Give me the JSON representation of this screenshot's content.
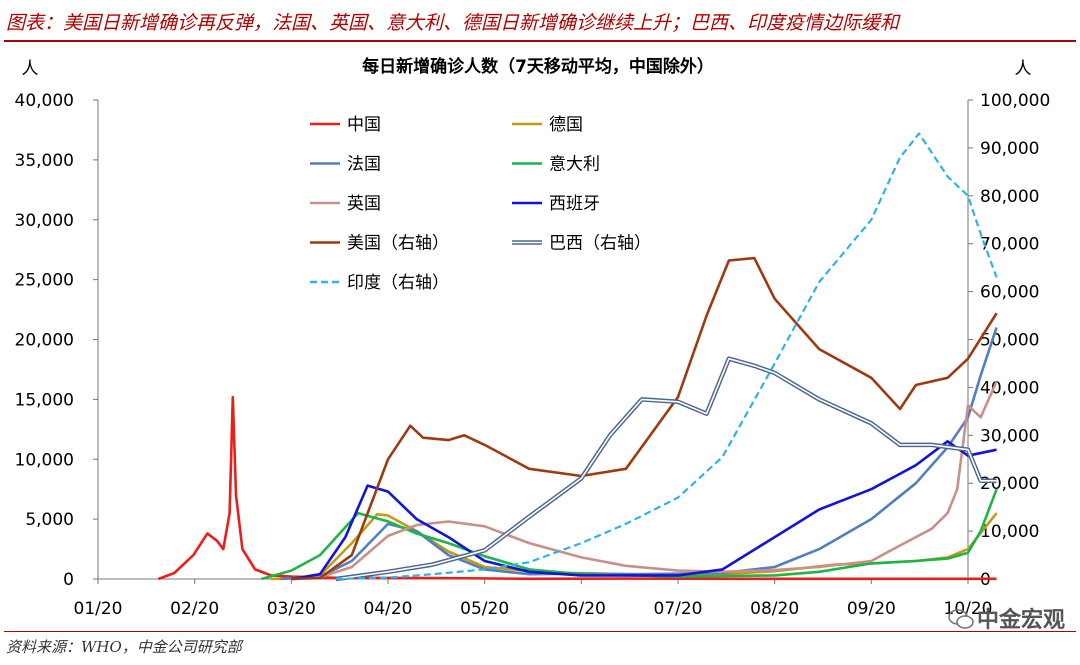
{
  "header": {
    "title": "图表：美国日新增确诊再反弹，法国、英国、意大利、德国日新增确诊继续上升；巴西、印度疫情边际缓和"
  },
  "footer": {
    "source": "资料来源：WHO，中金公司研究部",
    "watermark": "中金宏观"
  },
  "colors": {
    "header_red": "#b00000",
    "中国": "#e8201c",
    "德国": "#c49a14",
    "法国": "#4f7fbf",
    "意大利": "#1db44a",
    "英国": "#c89088",
    "西班牙": "#1414d4",
    "美国": "#9e3a10",
    "巴西": "#4a6690",
    "印度": "#2fb2e6"
  },
  "chart_data": {
    "type": "line",
    "title": "每日新增确诊人数（7天移动平均，中国除外）",
    "ylabel_left": "人",
    "ylabel_right": "人",
    "x_domain": [
      "01/20",
      "10/20"
    ],
    "x_ticks": [
      "01/20",
      "02/20",
      "03/20",
      "04/20",
      "05/20",
      "06/20",
      "07/20",
      "08/20",
      "09/20",
      "10/20"
    ],
    "y_left": {
      "lim": [
        0,
        40000
      ],
      "ticks": [
        "0",
        "5,000",
        "10,000",
        "15,000",
        "20,000",
        "25,000",
        "30,000",
        "35,000",
        "40,000"
      ]
    },
    "y_right": {
      "lim": [
        0,
        100000
      ],
      "ticks": [
        "0",
        "10,000",
        "20,000",
        "30,000",
        "40,000",
        "50,000",
        "60,000",
        "70,000",
        "80,000",
        "90,000",
        "100,000"
      ]
    },
    "grid": false,
    "legend": {
      "placement": "top-left, two columns"
    },
    "series": [
      {
        "name": "中国",
        "axis": "left",
        "style": "solid",
        "x": [
          "01/20",
          "01/25",
          "01/31",
          "02/05",
          "02/08",
          "02/10",
          "02/12",
          "02/13",
          "02/14",
          "02/16",
          "02/20",
          "02/25",
          "03/01",
          "03/15",
          "04/15",
          "05/15",
          "06/15",
          "07/15",
          "08/15",
          "09/15",
          "10/10"
        ],
        "y": [
          0,
          500,
          2000,
          3800,
          3200,
          2500,
          5500,
          15200,
          7000,
          2500,
          800,
          300,
          200,
          100,
          80,
          20,
          30,
          20,
          20,
          15,
          15
        ]
      },
      {
        "name": "德国",
        "axis": "left",
        "style": "solid",
        "x": [
          "02/25",
          "03/01",
          "03/10",
          "03/20",
          "03/28",
          "04/01",
          "04/10",
          "04/20",
          "05/01",
          "05/20",
          "06/15",
          "07/15",
          "08/01",
          "08/20",
          "09/01",
          "09/15",
          "09/25",
          "10/01",
          "10/10"
        ],
        "y": [
          0,
          50,
          300,
          3000,
          5400,
          5300,
          4000,
          2300,
          1000,
          550,
          400,
          400,
          650,
          1200,
          1300,
          1500,
          1800,
          2500,
          5500
        ]
      },
      {
        "name": "法国",
        "axis": "left",
        "style": "solid",
        "x": [
          "02/28",
          "03/10",
          "03/20",
          "04/01",
          "04/10",
          "04/20",
          "05/01",
          "05/15",
          "06/01",
          "06/20",
          "07/15",
          "08/01",
          "08/15",
          "09/01",
          "09/15",
          "09/25",
          "10/01",
          "10/05",
          "10/10"
        ],
        "y": [
          0,
          200,
          1500,
          4600,
          4000,
          2000,
          800,
          400,
          450,
          400,
          500,
          1000,
          2500,
          5000,
          8000,
          11000,
          13500,
          17000,
          21000
        ]
      },
      {
        "name": "意大利",
        "axis": "left",
        "style": "solid",
        "x": [
          "02/22",
          "03/01",
          "03/10",
          "03/22",
          "04/01",
          "04/10",
          "04/20",
          "05/01",
          "05/15",
          "06/01",
          "07/01",
          "08/01",
          "08/15",
          "09/01",
          "09/15",
          "09/25",
          "10/01",
          "10/05",
          "10/10"
        ],
        "y": [
          0,
          700,
          2000,
          5500,
          4800,
          3800,
          3000,
          1900,
          800,
          400,
          200,
          300,
          600,
          1300,
          1500,
          1700,
          2200,
          4000,
          7500
        ]
      },
      {
        "name": "英国",
        "axis": "left",
        "style": "solid",
        "x": [
          "03/01",
          "03/10",
          "03/20",
          "04/01",
          "04/10",
          "04/20",
          "05/01",
          "05/15",
          "06/01",
          "06/15",
          "07/01",
          "07/15",
          "08/01",
          "08/15",
          "09/01",
          "09/10",
          "09/20",
          "09/25",
          "09/28",
          "10/01",
          "10/05",
          "10/10"
        ],
        "y": [
          0,
          150,
          1000,
          3600,
          4500,
          4800,
          4400,
          3000,
          1800,
          1100,
          700,
          600,
          750,
          1000,
          1500,
          2800,
          4200,
          5500,
          7500,
          14500,
          13500,
          16500
        ]
      },
      {
        "name": "西班牙",
        "axis": "left",
        "style": "solid",
        "x": [
          "03/01",
          "03/10",
          "03/18",
          "03/25",
          "04/01",
          "04/10",
          "04/20",
          "05/01",
          "05/15",
          "06/01",
          "07/01",
          "07/15",
          "08/01",
          "08/15",
          "09/01",
          "09/15",
          "09/25",
          "10/01",
          "10/10"
        ],
        "y": [
          0,
          400,
          3500,
          7800,
          7300,
          5000,
          3500,
          1500,
          600,
          300,
          300,
          800,
          3500,
          5800,
          7500,
          9500,
          11500,
          10300,
          10800
        ]
      },
      {
        "name": "美国（右轴）",
        "axis": "right",
        "style": "solid",
        "x": [
          "03/01",
          "03/10",
          "03/20",
          "04/01",
          "04/08",
          "04/12",
          "04/20",
          "04/25",
          "05/01",
          "05/15",
          "06/01",
          "06/15",
          "07/01",
          "07/10",
          "07/17",
          "07/25",
          "08/01",
          "08/15",
          "09/01",
          "09/10",
          "09/15",
          "09/25",
          "10/01",
          "10/10"
        ],
        "y": [
          0,
          200,
          5000,
          25000,
          32000,
          29500,
          29000,
          30000,
          28000,
          23000,
          21500,
          23000,
          38000,
          55000,
          66500,
          67000,
          58500,
          48000,
          42000,
          35500,
          40500,
          42000,
          46000,
          55500
        ]
      },
      {
        "name": "巴西（右轴）",
        "axis": "right",
        "style": "double",
        "x": [
          "03/15",
          "04/01",
          "04/15",
          "05/01",
          "05/15",
          "06/01",
          "06/10",
          "06/20",
          "07/01",
          "07/10",
          "07/17",
          "07/25",
          "08/01",
          "08/15",
          "09/01",
          "09/10",
          "09/20",
          "10/01",
          "10/05",
          "10/10"
        ],
        "y": [
          0,
          1500,
          3000,
          6000,
          13000,
          21000,
          30000,
          37500,
          37000,
          34500,
          46000,
          44500,
          43000,
          37500,
          32500,
          28000,
          28000,
          27000,
          20500,
          20500
        ]
      },
      {
        "name": "印度（右轴）",
        "axis": "right",
        "style": "dashed",
        "x": [
          "03/15",
          "04/01",
          "04/15",
          "05/01",
          "05/15",
          "06/01",
          "06/15",
          "07/01",
          "07/15",
          "08/01",
          "08/15",
          "09/01",
          "09/10",
          "09/16",
          "09/25",
          "10/01",
          "10/05",
          "10/10"
        ],
        "y": [
          0,
          300,
          1000,
          2000,
          3500,
          7500,
          11500,
          17000,
          25500,
          45000,
          62000,
          75000,
          88000,
          93000,
          84000,
          80000,
          72000,
          63000
        ]
      }
    ]
  }
}
